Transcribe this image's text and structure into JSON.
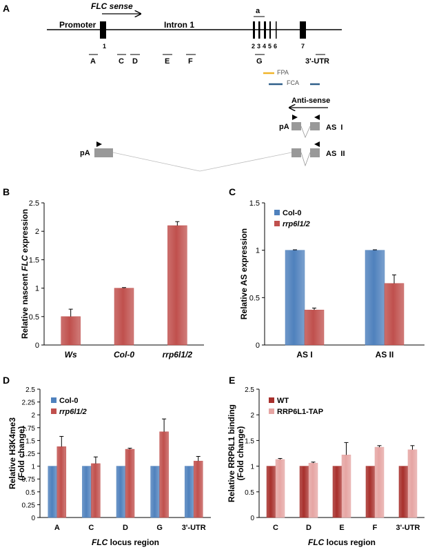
{
  "panels": [
    "A",
    "B",
    "C",
    "D",
    "E"
  ],
  "gene_diagram": {
    "sense_label": "FLC sense",
    "promoter_label": "Promoter",
    "intron_label": "Intron 1",
    "exon_numbers": [
      "1",
      "2",
      "3",
      "4",
      "5",
      "6",
      "7"
    ],
    "utr_label": "3'-UTR",
    "region_a_label": "a",
    "regions": [
      "A",
      "C",
      "D",
      "E",
      "F",
      "G"
    ],
    "legend": [
      {
        "label": "FPA",
        "color": "#f0b429"
      },
      {
        "label": "FCA",
        "color": "#2f5f8a"
      }
    ],
    "antisense_label": "Anti-sense",
    "pa_label": "pA",
    "as1_label": "AS  I",
    "as2_label": "AS  II"
  },
  "colors": {
    "blue": "#4f81bd",
    "red": "#c0504d",
    "darkred": "#a8302c",
    "pink": "#e6a5a3"
  },
  "chart_data": [
    {
      "id": "B",
      "type": "bar",
      "title": "",
      "xlabel": "",
      "ylabel": "Relative nascent FLC expression",
      "categories": [
        "Ws",
        "Col-0",
        "rrp6l1/2"
      ],
      "series": [
        {
          "name": "",
          "values": [
            0.5,
            1.0,
            2.1
          ],
          "errors": [
            0.13,
            0.01,
            0.07
          ]
        }
      ],
      "ylim": [
        0,
        2.5
      ],
      "yticks": [
        "0",
        "0.5",
        "1",
        "1.5",
        "2",
        "2.5"
      ],
      "grid": false
    },
    {
      "id": "C",
      "type": "bar",
      "title": "",
      "xlabel": "",
      "ylabel": "Relative AS expression",
      "categories": [
        "AS I",
        "AS II"
      ],
      "series": [
        {
          "name": "Col-0",
          "values": [
            1.0,
            1.0
          ],
          "errors": [
            0.005,
            0.005
          ]
        },
        {
          "name": "rrp6l1/2",
          "values": [
            0.37,
            0.65
          ],
          "errors": [
            0.02,
            0.09
          ]
        }
      ],
      "ylim": [
        0,
        1.5
      ],
      "yticks": [
        "0",
        "0.5",
        "1",
        "1.5"
      ],
      "legend": "top-left",
      "grid": false
    },
    {
      "id": "D",
      "type": "bar",
      "title": "",
      "xlabel": "FLC locus region",
      "ylabel": "Relative H3K4me3 (Fold change)",
      "categories": [
        "A",
        "C",
        "D",
        "G",
        "3'-UTR"
      ],
      "series": [
        {
          "name": "Col-0",
          "values": [
            1.0,
            1.0,
            1.0,
            1.0,
            1.0
          ],
          "errors": [
            0,
            0,
            0,
            0,
            0
          ]
        },
        {
          "name": "rrp6l1/2",
          "values": [
            1.38,
            1.05,
            1.33,
            1.67,
            1.1
          ],
          "errors": [
            0.2,
            0.13,
            0.02,
            0.25,
            0.09
          ]
        }
      ],
      "ylim": [
        0,
        2.5
      ],
      "yticks": [
        "0",
        "0.25",
        "0.5",
        "0.75",
        "1",
        "1.25",
        "1.5",
        "1.75",
        "2",
        "2.25",
        "2.5"
      ],
      "legend": "top-left",
      "grid": false
    },
    {
      "id": "E",
      "type": "bar",
      "title": "",
      "xlabel": "FLC locus region",
      "ylabel": "Relative RRP6L1 binding (Fold change)",
      "categories": [
        "C",
        "D",
        "E",
        "F",
        "3'-UTR"
      ],
      "series": [
        {
          "name": "WT",
          "values": [
            1.0,
            1.0,
            1.0,
            1.0,
            1.0
          ],
          "errors": [
            0,
            0,
            0,
            0,
            0
          ]
        },
        {
          "name": "RRP6L1-TAP",
          "values": [
            1.13,
            1.06,
            1.22,
            1.37,
            1.32
          ],
          "errors": [
            0.02,
            0.02,
            0.24,
            0.03,
            0.08
          ]
        }
      ],
      "ylim": [
        0,
        2.5
      ],
      "yticks": [
        "0",
        "0.5",
        "1",
        "1.5",
        "2",
        "2.5"
      ],
      "legend": "top-left",
      "grid": false
    }
  ]
}
